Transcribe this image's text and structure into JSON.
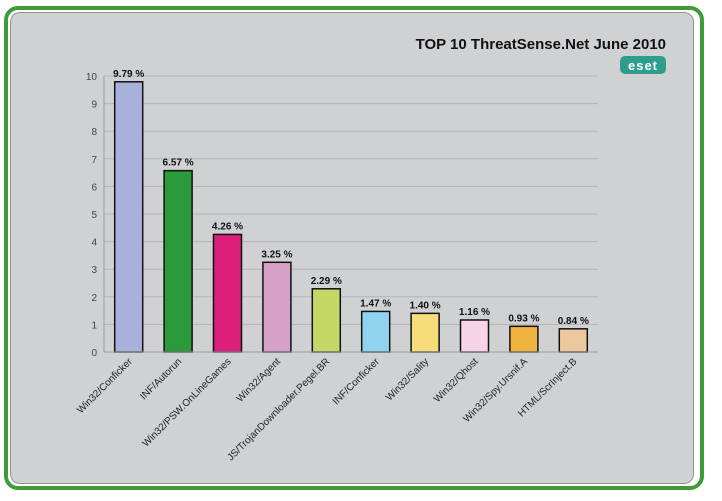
{
  "logo_text": "eset",
  "chart_data": {
    "type": "bar",
    "title": "TOP 10 ThreatSense.Net June 2010",
    "xlabel": "",
    "ylabel": "",
    "ylim": [
      0,
      10
    ],
    "yticks": [
      "0",
      "1",
      "2",
      "3",
      "4",
      "5",
      "6",
      "7",
      "8",
      "9",
      "10"
    ],
    "grid": true,
    "categories": [
      "Win32/Conficker",
      "INF/Autorun",
      "Win32/PSW.OnLineGames",
      "Win32/Agent",
      "JS/TrojanDownloader.Pegel.BR",
      "INF/Conficker",
      "Win32/Sality",
      "Win32/Qhost",
      "Win32/Spy.Ursnif.A",
      "HTML/ScrInject.B"
    ],
    "values": [
      9.79,
      6.57,
      4.26,
      3.25,
      2.29,
      1.47,
      1.4,
      1.16,
      0.93,
      0.84
    ],
    "value_labels": [
      "9.79 %",
      "6.57 %",
      "4.26 %",
      "3.25 %",
      "2.29 %",
      "1.47 %",
      "1.40 %",
      "1.16 %",
      "0.93 %",
      "0.84 %"
    ],
    "colors": [
      "#a9b0dc",
      "#2a9a3a",
      "#dc1f7a",
      "#d7a0c8",
      "#c5d866",
      "#8fd3ef",
      "#f7dd7a",
      "#f6d3e6",
      "#f0b43e",
      "#ecc79e"
    ]
  }
}
